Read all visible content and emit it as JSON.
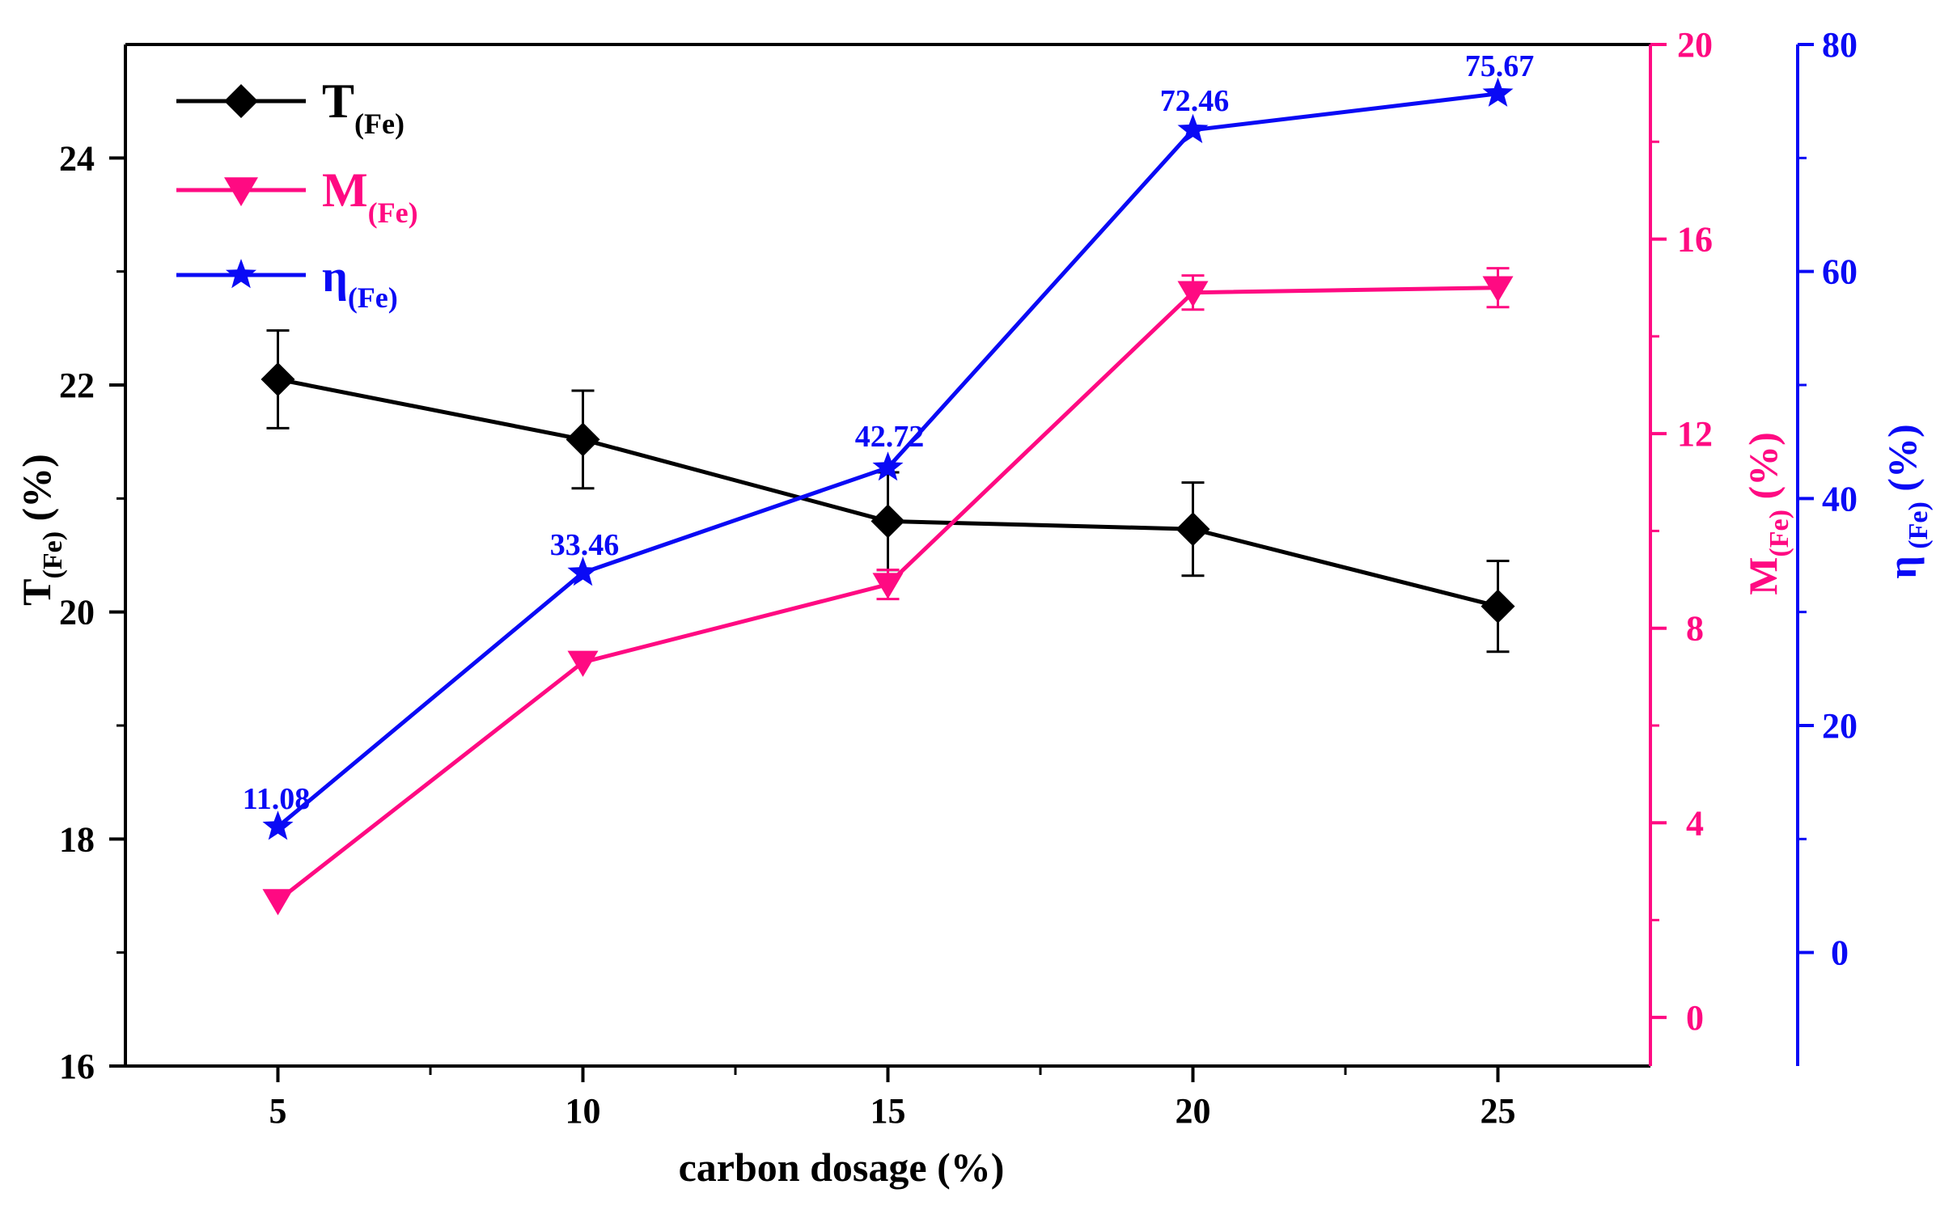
{
  "colors": {
    "t": "#000000",
    "m": "#ff0a82",
    "eta": "#0a0af5"
  },
  "chart_data": {
    "type": "line",
    "x": [
      5,
      10,
      15,
      20,
      25
    ],
    "xlabel": "carbon dosage (%)",
    "xlim": [
      2.5,
      27.5
    ],
    "x_ticks": [
      "5",
      "10",
      "15",
      "20",
      "25"
    ],
    "axes": {
      "left": {
        "title_main": "T",
        "title_sub": "(Fe)",
        "title_unit": " (%)",
        "ylim": [
          16,
          25
        ],
        "ticks": [
          "16",
          "18",
          "20",
          "22",
          "24"
        ]
      },
      "right1": {
        "title_main": "M",
        "title_sub": "(Fe)",
        "title_unit": " (%)",
        "ylim": [
          -1,
          20
        ],
        "ticks": [
          "0",
          "4",
          "8",
          "12",
          "16",
          "20"
        ]
      },
      "right2": {
        "title_main": "η",
        "title_sub": " (Fe)",
        "title_unit": " (%)",
        "ylim": [
          -10,
          80
        ],
        "ticks": [
          "0",
          "20",
          "40",
          "60",
          "80"
        ]
      }
    },
    "series": [
      {
        "name_main": "T",
        "name_sub": "(Fe)",
        "axis": "left",
        "marker": "diamond",
        "values": [
          22.05,
          21.52,
          20.8,
          20.73,
          20.05
        ],
        "errors": [
          0.43,
          0.43,
          0.43,
          0.41,
          0.4
        ]
      },
      {
        "name_main": "M",
        "name_sub": "(Fe)",
        "axis": "right1",
        "marker": "triangle-down",
        "values": [
          2.4,
          7.3,
          8.9,
          14.9,
          15.0
        ],
        "errors": [
          0,
          0,
          0.3,
          0.35,
          0.4
        ]
      },
      {
        "name_main": "η",
        "name_sub": "(Fe)",
        "axis": "right2",
        "marker": "star",
        "values": [
          11.08,
          33.46,
          42.72,
          72.46,
          75.67
        ],
        "data_labels": [
          "11.08",
          "33.46",
          "42.72",
          "72.46",
          "75.67"
        ]
      }
    ],
    "legend": "top-left",
    "grid": false
  }
}
